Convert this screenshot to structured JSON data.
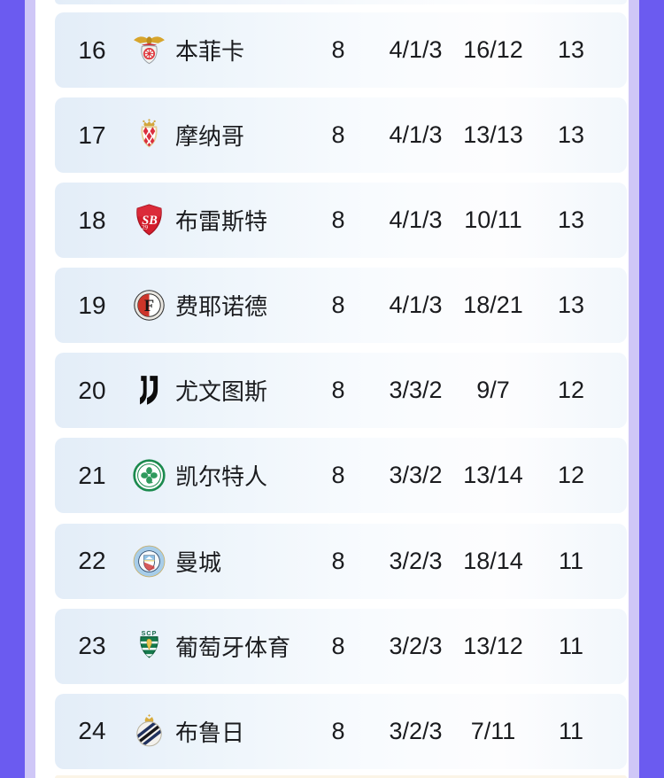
{
  "theme": {
    "frame_dark": "#6b5bf0",
    "frame_light": "#cfc7f7",
    "row_bg_left": "#e3edf8",
    "row_bg_right": "#f2f7fc",
    "text_color": "#1a1b1e"
  },
  "table": {
    "rows": [
      {
        "rank": "16",
        "team": "本菲卡",
        "logo": "benfica",
        "logo_icon": "benfica-logo-icon",
        "played": "8",
        "wdl": "4/1/3",
        "goals": "16/12",
        "points": "13"
      },
      {
        "rank": "17",
        "team": "摩纳哥",
        "logo": "monaco",
        "logo_icon": "monaco-logo-icon",
        "played": "8",
        "wdl": "4/1/3",
        "goals": "13/13",
        "points": "13"
      },
      {
        "rank": "18",
        "team": "布雷斯特",
        "logo": "brest",
        "logo_icon": "brest-logo-icon",
        "played": "8",
        "wdl": "4/1/3",
        "goals": "10/11",
        "points": "13"
      },
      {
        "rank": "19",
        "team": "费耶诺德",
        "logo": "feyenoord",
        "logo_icon": "feyenoord-logo-icon",
        "played": "8",
        "wdl": "4/1/3",
        "goals": "18/21",
        "points": "13"
      },
      {
        "rank": "20",
        "team": "尤文图斯",
        "logo": "juventus",
        "logo_icon": "juventus-logo-icon",
        "played": "8",
        "wdl": "3/3/2",
        "goals": "9/7",
        "points": "12"
      },
      {
        "rank": "21",
        "team": "凯尔特人",
        "logo": "celtic",
        "logo_icon": "celtic-logo-icon",
        "played": "8",
        "wdl": "3/3/2",
        "goals": "13/14",
        "points": "12"
      },
      {
        "rank": "22",
        "team": "曼城",
        "logo": "mancity",
        "logo_icon": "mancity-logo-icon",
        "played": "8",
        "wdl": "3/2/3",
        "goals": "18/14",
        "points": "11"
      },
      {
        "rank": "23",
        "team": "葡萄牙体育",
        "logo": "sporting",
        "logo_icon": "sporting-logo-icon",
        "played": "8",
        "wdl": "3/2/3",
        "goals": "13/12",
        "points": "11"
      },
      {
        "rank": "24",
        "team": "布鲁日",
        "logo": "brugge",
        "logo_icon": "brugge-logo-icon",
        "played": "8",
        "wdl": "3/2/3",
        "goals": "7/11",
        "points": "11"
      }
    ]
  }
}
